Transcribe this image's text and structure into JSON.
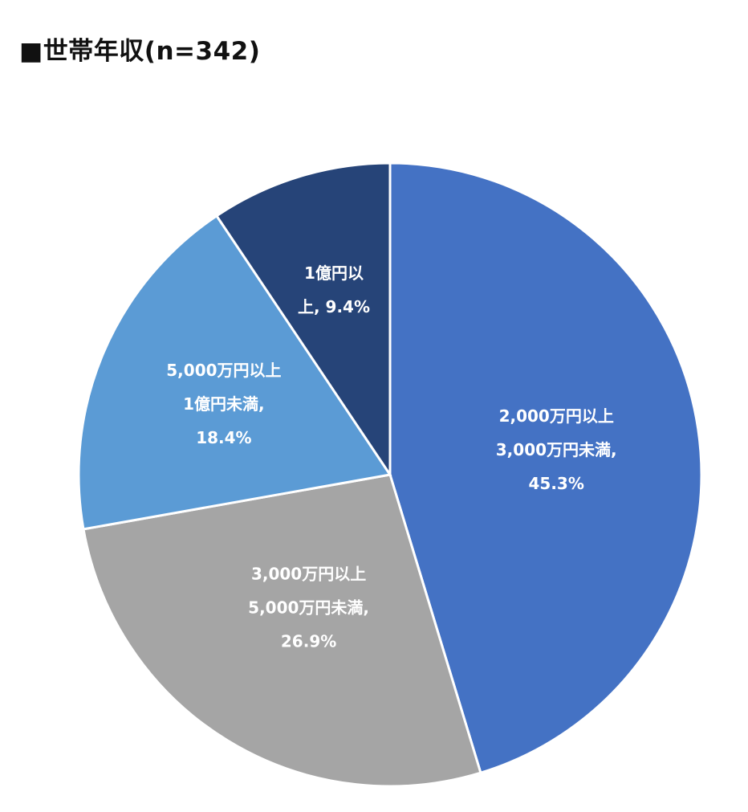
{
  "chart_data": {
    "type": "pie",
    "title": "■世帯年収(n=342)",
    "slices": [
      {
        "label_lines": [
          "2,000万円以上",
          "3,000万円未満,",
          "45.3%"
        ],
        "value": 45.3,
        "color": "#4472C4"
      },
      {
        "label_lines": [
          "3,000万円以上",
          "5,000万円未満,",
          "26.9%"
        ],
        "value": 26.9,
        "color": "#A5A5A5"
      },
      {
        "label_lines": [
          "5,000万円以上",
          "1億円未満,",
          "18.4%"
        ],
        "value": 18.4,
        "color": "#5B9BD5"
      },
      {
        "label_lines": [
          "1億円以",
          "上, 9.4%"
        ],
        "value": 9.4,
        "color": "#264478"
      }
    ],
    "start": "12 o'clock",
    "direction": "clockwise",
    "legend": "none"
  }
}
